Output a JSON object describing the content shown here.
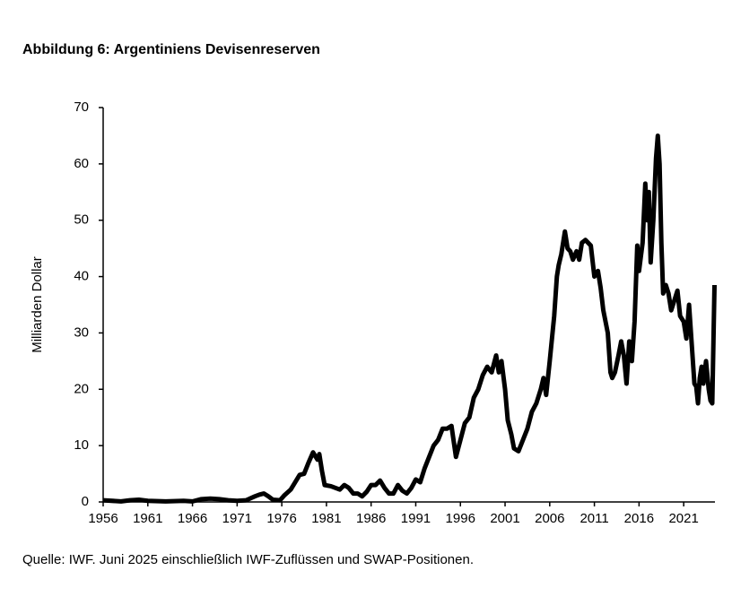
{
  "chart_data": {
    "type": "line",
    "title": "Abbildung 6: Argentiniens Devisenreserven",
    "y_label": "Milliarden Dollar",
    "source": "Quelle: IWF. Juni 2025 einschließlich IWF-Zuflüssen und SWAP-Positionen.",
    "color": "#000000",
    "grid": false,
    "xlim": [
      1956,
      2024.5
    ],
    "xticks": [
      1956,
      1961,
      1966,
      1971,
      1976,
      1981,
      1986,
      1991,
      1996,
      2001,
      2006,
      2011,
      2016,
      2021
    ],
    "ylim": [
      0,
      70
    ],
    "yticks": [
      0,
      10,
      20,
      30,
      40,
      50,
      60,
      70
    ],
    "x": [
      1956,
      1958,
      1959,
      1960,
      1961,
      1963,
      1965,
      1966,
      1967,
      1968,
      1969,
      1970,
      1971,
      1972,
      1973,
      1973.5,
      1974,
      1974.5,
      1975,
      1975.8,
      1976.3,
      1977,
      1977.5,
      1978,
      1978.5,
      1979,
      1979.5,
      1980,
      1980.2,
      1980.5,
      1980.8,
      1981.5,
      1982,
      1982.5,
      1983,
      1983.5,
      1984,
      1984.5,
      1985,
      1985.5,
      1986,
      1986.5,
      1987,
      1987.5,
      1988,
      1988.5,
      1989,
      1989.5,
      1990,
      1990.5,
      1991,
      1991.5,
      1992,
      1992.5,
      1993,
      1993.5,
      1994,
      1994.5,
      1995,
      1995.5,
      1996,
      1996.5,
      1997,
      1997.5,
      1998,
      1998.5,
      1999,
      1999.5,
      2000,
      2000.3,
      2000.6,
      2001,
      2001.3,
      2001.7,
      2002,
      2002.5,
      2003,
      2003.5,
      2004,
      2004.5,
      2005,
      2005.3,
      2005.6,
      2006,
      2006.5,
      2006.8,
      2007,
      2007.3,
      2007.7,
      2008,
      2008.3,
      2008.6,
      2009,
      2009.3,
      2009.6,
      2010,
      2010.3,
      2010.6,
      2011,
      2011.4,
      2011.7,
      2012,
      2012.5,
      2012.8,
      2013,
      2013.3,
      2013.7,
      2014,
      2014.3,
      2014.6,
      2014.9,
      2015.2,
      2015.5,
      2015.8,
      2016,
      2016.4,
      2016.7,
      2016.9,
      2017.1,
      2017.3,
      2017.6,
      2017.9,
      2018.1,
      2018.3,
      2018.5,
      2018.7,
      2019,
      2019.3,
      2019.6,
      2020,
      2020.3,
      2020.6,
      2021,
      2021.3,
      2021.6,
      2021.9,
      2022.2,
      2022.4,
      2022.6,
      2022.8,
      2023,
      2023.2,
      2023.5,
      2023.8,
      2024,
      2024.2,
      2024.45
    ],
    "values": [
      0.3,
      0.1,
      0.3,
      0.4,
      0.2,
      0.1,
      0.2,
      0.1,
      0.5,
      0.6,
      0.5,
      0.3,
      0.2,
      0.3,
      1.0,
      1.3,
      1.5,
      1.0,
      0.4,
      0.3,
      1.2,
      2.2,
      3.5,
      4.8,
      5.0,
      7.0,
      8.8,
      7.5,
      8.5,
      5.5,
      3.0,
      2.8,
      2.5,
      2.2,
      3.0,
      2.5,
      1.5,
      1.5,
      1.0,
      1.8,
      3.0,
      3.0,
      3.8,
      2.5,
      1.5,
      1.5,
      3.0,
      2.0,
      1.5,
      2.5,
      4.0,
      3.5,
      6.0,
      8.0,
      10.0,
      11.0,
      13.0,
      13.0,
      13.5,
      8.0,
      11.0,
      14.0,
      15.0,
      18.5,
      20.0,
      22.5,
      24.0,
      23.0,
      26.0,
      23.0,
      25.0,
      20.0,
      14.5,
      12.0,
      9.5,
      9.0,
      11.0,
      13.0,
      16.0,
      17.5,
      20.0,
      22.0,
      19.0,
      25.0,
      33.0,
      40.0,
      42.0,
      44.0,
      48.0,
      45.0,
      44.5,
      43.0,
      44.5,
      43.0,
      46.0,
      46.5,
      46.0,
      45.5,
      40.0,
      41.0,
      38.0,
      34.0,
      30.0,
      23.0,
      22.0,
      23.0,
      26.0,
      28.5,
      26.0,
      21.0,
      28.5,
      25.0,
      32.0,
      45.5,
      41.0,
      46.0,
      56.5,
      50.0,
      55.0,
      42.5,
      50.0,
      61.0,
      65.0,
      60.0,
      46.0,
      37.0,
      38.5,
      37.0,
      34.0,
      36.0,
      37.5,
      33.0,
      32.0,
      29.0,
      35.0,
      28.0,
      21.0,
      20.5,
      17.5,
      22.0,
      24.0,
      21.0,
      25.0,
      20.0,
      18.0,
      17.5,
      38.5
    ]
  }
}
